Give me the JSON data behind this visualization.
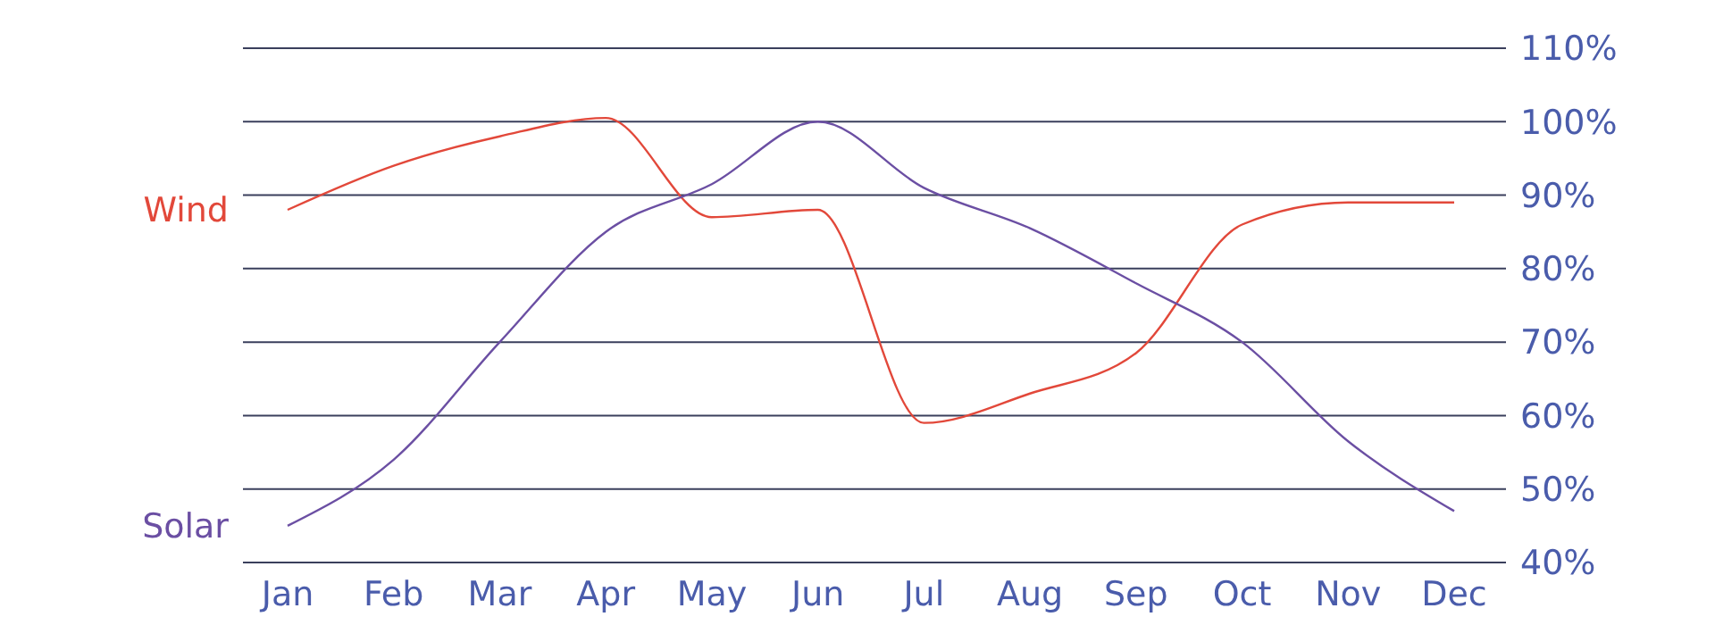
{
  "chart_data": {
    "type": "line",
    "categories": [
      "Jan",
      "Feb",
      "Mar",
      "Apr",
      "May",
      "Jun",
      "Jul",
      "Aug",
      "Sep",
      "Oct",
      "Nov",
      "Dec"
    ],
    "series": [
      {
        "name": "Wind",
        "color": "#e2483a",
        "values": [
          88,
          94,
          98,
          100.5,
          87,
          88,
          59,
          63,
          68.5,
          86,
          89,
          89
        ]
      },
      {
        "name": "Solar",
        "color": "#6b4fa3",
        "values": [
          45,
          54,
          70,
          85,
          91.5,
          100,
          91,
          85.5,
          78,
          70,
          56.5,
          47
        ]
      }
    ],
    "ylim": [
      40,
      110
    ],
    "yticks": [
      {
        "value": 40,
        "label": "40%"
      },
      {
        "value": 50,
        "label": "50%"
      },
      {
        "value": 60,
        "label": "60%"
      },
      {
        "value": 70,
        "label": "70%"
      },
      {
        "value": 80,
        "label": "80%"
      },
      {
        "value": 90,
        "label": "90%"
      },
      {
        "value": 100,
        "label": "100%"
      },
      {
        "value": 110,
        "label": "110%"
      }
    ],
    "grid": "y",
    "legend": "left",
    "line_style": "solid",
    "marker": "none"
  }
}
